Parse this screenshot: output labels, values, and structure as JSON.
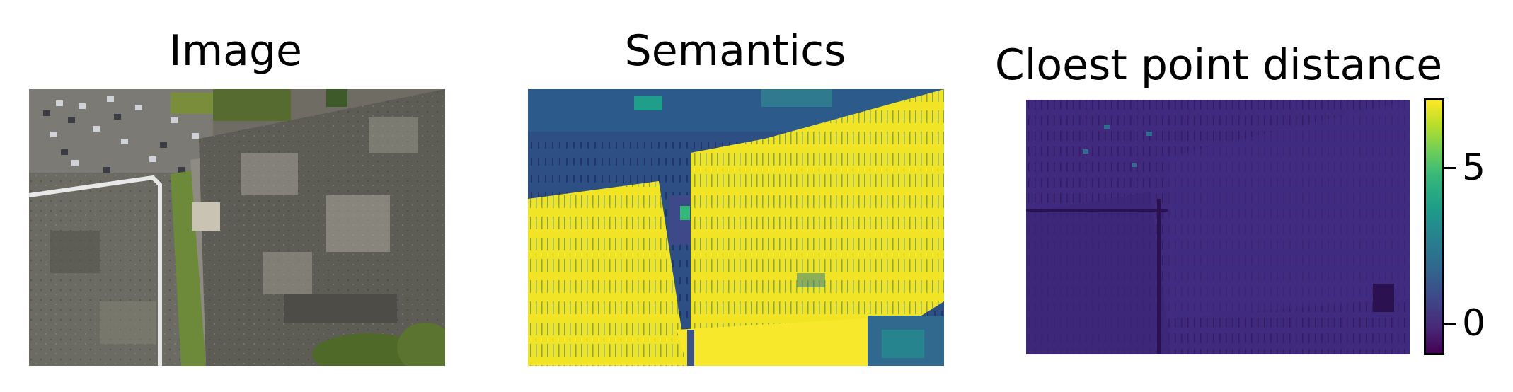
{
  "panels": [
    {
      "title": "Image",
      "content": "aerial photograph of rooftops, parking lot and grass"
    },
    {
      "title": "Semantics",
      "content": "semantic label map, viridis colors"
    },
    {
      "title": "Cloest point distance",
      "content": "distance map, viridis colors"
    }
  ],
  "colorbar": {
    "colormap": "viridis",
    "ticks": [
      {
        "label": "5",
        "value": 5
      },
      {
        "label": "0",
        "value": 0
      }
    ],
    "range": [
      -0.7,
      6.8
    ]
  },
  "colors": {
    "viridis_low": "#440154",
    "viridis_high": "#fde725",
    "distance_base": "#3b1f78"
  }
}
